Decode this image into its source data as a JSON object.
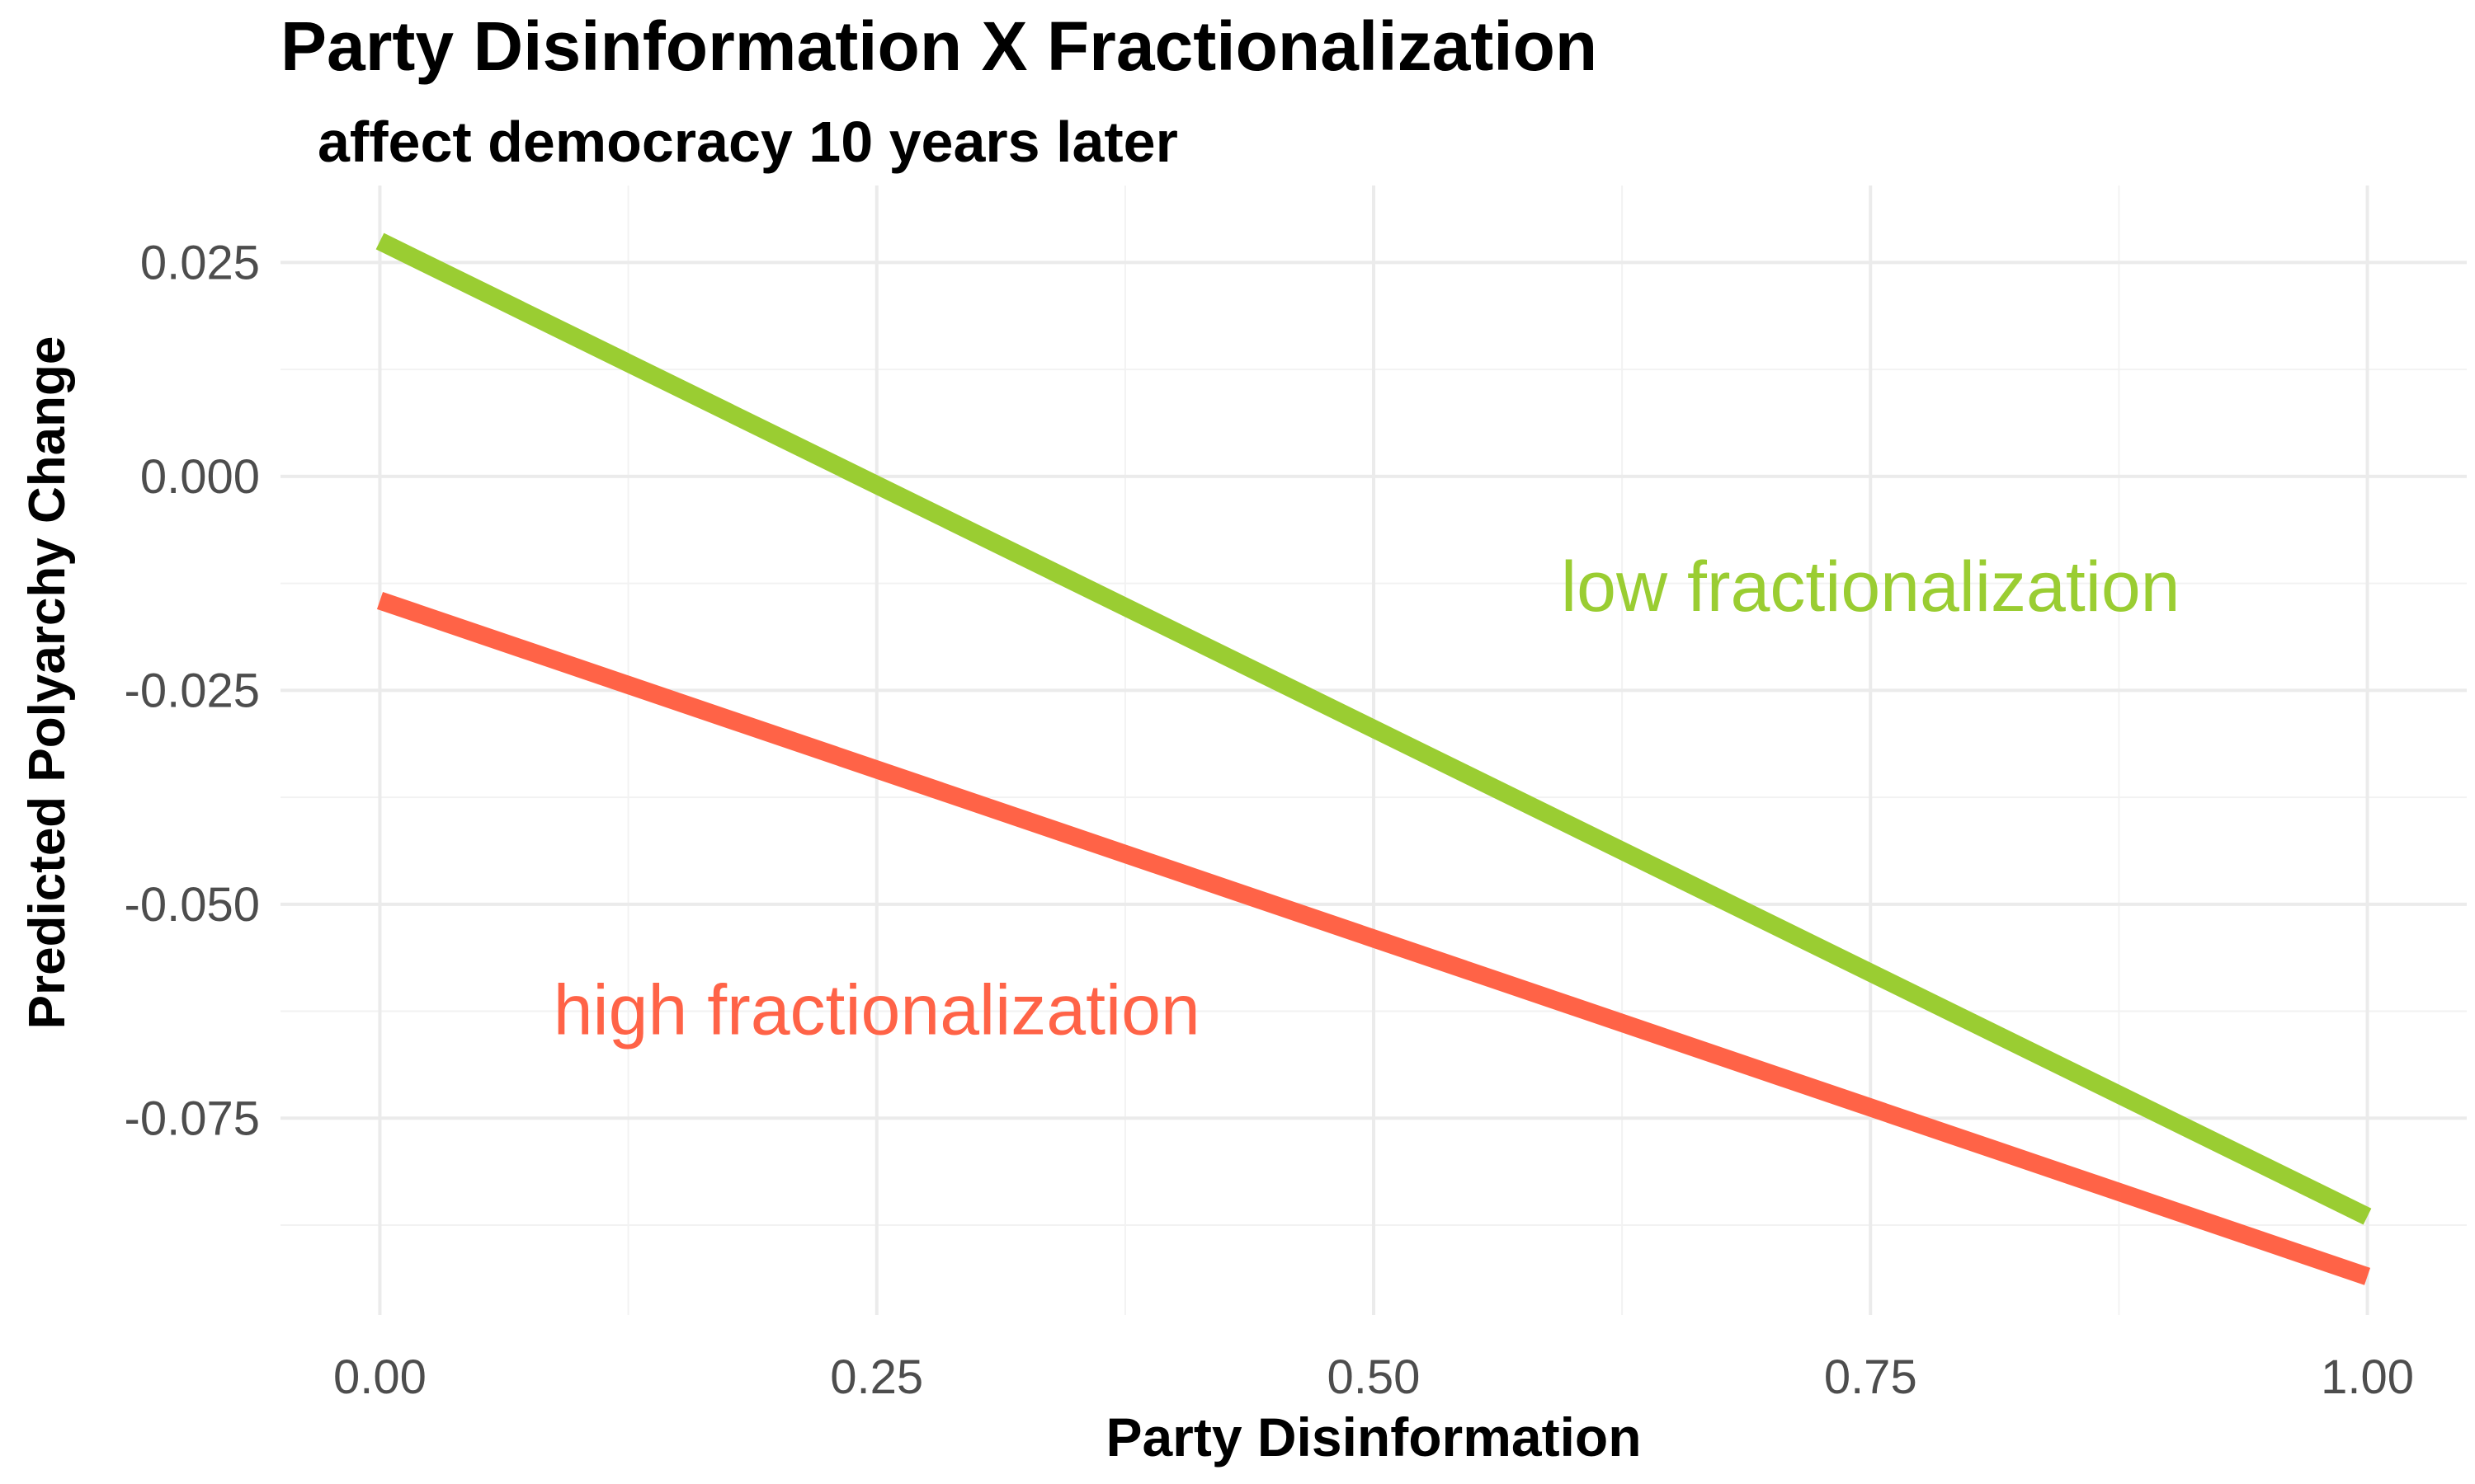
{
  "chart_data": {
    "type": "line",
    "title": "Party Disinformation X Fractionalization",
    "subtitle": "affect democracy 10 years later",
    "xlabel": "Party Disinformation",
    "ylabel": "Predicted Polyarchy Change",
    "xlim": [
      -0.05,
      1.05
    ],
    "ylim": [
      -0.098,
      0.034
    ],
    "x_ticks": [
      0.0,
      0.25,
      0.5,
      0.75,
      1.0
    ],
    "x_tick_labels": [
      "0.00",
      "0.25",
      "0.50",
      "0.75",
      "1.00"
    ],
    "y_ticks": [
      0.025,
      0.0,
      -0.025,
      -0.05,
      -0.075
    ],
    "y_tick_labels": [
      "0.025",
      "0.000",
      "-0.025",
      "-0.050",
      "-0.075"
    ],
    "grid": true,
    "legend": "none",
    "series": [
      {
        "name": "low fractionalization",
        "color": "#9ACD32",
        "x": [
          0.0,
          1.0
        ],
        "y": [
          0.0275,
          -0.0865
        ],
        "label_x": 0.75,
        "label_y": -0.013
      },
      {
        "name": "high fractionalization",
        "color": "#FF6347",
        "x": [
          0.0,
          1.0
        ],
        "y": [
          -0.0145,
          -0.0935
        ],
        "label_x": 0.25,
        "label_y": -0.0625
      }
    ]
  }
}
